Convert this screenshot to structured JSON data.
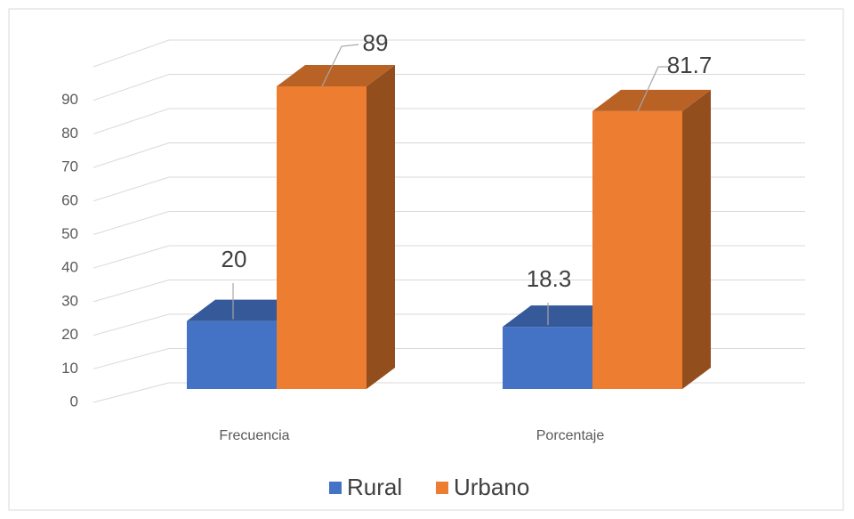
{
  "chart_data": {
    "type": "bar3d",
    "categories": [
      "Frecuencia",
      "Porcentaje"
    ],
    "series": [
      {
        "name": "Rural",
        "color": "#4472c4",
        "values": [
          20,
          18.3
        ]
      },
      {
        "name": "Urbano",
        "color": "#ed7d31",
        "values": [
          89,
          81.7
        ]
      }
    ],
    "ylim": [
      0,
      100
    ],
    "yticks": [
      0,
      10,
      20,
      30,
      40,
      50,
      60,
      70,
      80,
      90
    ],
    "grid": true,
    "legend": "bottom"
  }
}
